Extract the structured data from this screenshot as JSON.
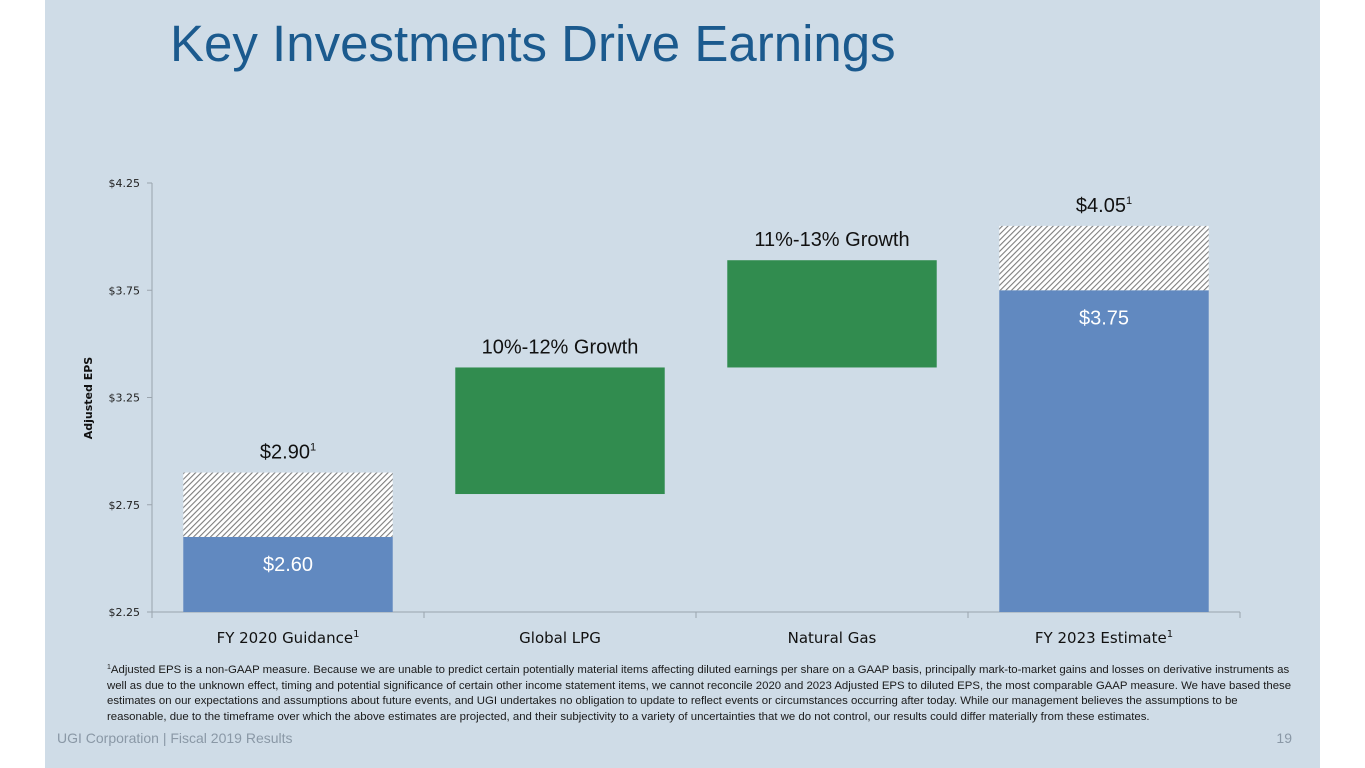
{
  "slide": {
    "title": "Key Investments Drive Earnings",
    "footer_left": "UGI Corporation  |  Fiscal 2019 Results",
    "page_number": "19",
    "footnote_marker": "1",
    "footnote": "Adjusted EPS is a non-GAAP measure.  Because we are unable to predict certain potentially material items affecting diluted earnings per share on a GAAP basis, principally mark-to-market gains and losses on derivative instruments as well as due to the unknown effect, timing and potential significance of certain other income statement items, we cannot reconcile 2020 and 2023 Adjusted EPS to diluted EPS, the most comparable GAAP measure. We have based these estimates on our expectations and assumptions about future events, and UGI undertakes no obligation to update to reflect events or circumstances occurring after today.  While our management believes the assumptions to be reasonable, due to the timeframe over which the above estimates are projected, and their subjectivity to a variety of uncertainties that we do not control, our results could differ materially from these estimates."
  },
  "colors": {
    "background": "#cfdce7",
    "title": "#1b5a8e",
    "base_bar": "#6189c0",
    "growth_bar": "#318c4f",
    "hatch_line": "#8c8c8c",
    "hatch_bg": "#ffffff"
  },
  "chart_data": {
    "type": "bar",
    "subtype": "waterfall",
    "title": "",
    "xlabel": "",
    "ylabel": "Adjusted EPS",
    "ylim": [
      2.25,
      4.25
    ],
    "yticks": [
      2.25,
      2.75,
      3.25,
      3.75,
      4.25
    ],
    "ytick_labels": [
      "$2.25",
      "$2.75",
      "$3.25",
      "$3.75",
      "$4.25"
    ],
    "grid": false,
    "categories": [
      {
        "label": "FY 2020 Guidance",
        "sup": "1"
      },
      {
        "label": "Global LPG",
        "sup": ""
      },
      {
        "label": "Natural Gas",
        "sup": ""
      },
      {
        "label": "FY 2023 Estimate",
        "sup": "1"
      }
    ],
    "series": [
      {
        "name": "Base (solid)",
        "kind": "base",
        "values": [
          [
            2.25,
            2.6
          ],
          null,
          null,
          [
            2.25,
            3.75
          ]
        ]
      },
      {
        "name": "Range (hatched)",
        "kind": "hatch",
        "values": [
          [
            2.6,
            2.9
          ],
          null,
          null,
          [
            3.75,
            4.05
          ]
        ]
      },
      {
        "name": "Growth",
        "kind": "growth",
        "values": [
          null,
          [
            2.8,
            3.39
          ],
          [
            3.39,
            3.89
          ],
          null
        ]
      }
    ],
    "annotations": [
      {
        "category": 0,
        "text": "$2.60",
        "position": "inside-base",
        "color": "white"
      },
      {
        "category": 0,
        "text": "$2.90",
        "sup": "1",
        "position": "above"
      },
      {
        "category": 1,
        "text": "10%-12% Growth",
        "position": "above"
      },
      {
        "category": 2,
        "text": "11%-13% Growth",
        "position": "above"
      },
      {
        "category": 3,
        "text": "$3.75",
        "position": "inside-base",
        "color": "white"
      },
      {
        "category": 3,
        "text": "$4.05",
        "sup": "1",
        "position": "above"
      }
    ]
  }
}
